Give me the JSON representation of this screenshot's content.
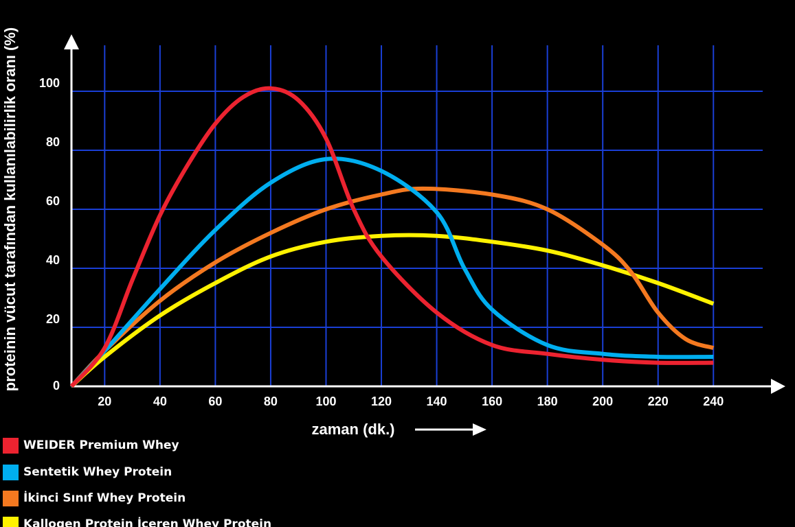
{
  "chart_data": {
    "type": "line",
    "title": "",
    "xlabel": "zaman (dk.)",
    "ylabel": "proteinin vücut tarafından kullanılabilirlik oranı (%)",
    "xlim": [
      8,
      240
    ],
    "ylim": [
      0,
      100
    ],
    "x_ticks": [
      20,
      40,
      60,
      80,
      100,
      120,
      140,
      160,
      180,
      200,
      220,
      240
    ],
    "y_ticks": [
      0,
      20,
      40,
      60,
      80,
      100
    ],
    "grid": true,
    "legend_position": "bottom-left",
    "background": "#000000",
    "series": [
      {
        "name": "WEIDER Premium Whey",
        "color": "#ec2330",
        "x": [
          8,
          20,
          30,
          40,
          50,
          60,
          70,
          80,
          90,
          100,
          110,
          120,
          140,
          160,
          180,
          200,
          220,
          240
        ],
        "y": [
          0,
          13,
          36,
          58,
          75,
          89,
          98,
          101,
          97,
          84,
          60,
          44,
          25,
          14,
          11,
          9,
          8,
          8
        ]
      },
      {
        "name": "Sentetik Whey Protein",
        "color": "#00aeef",
        "x": [
          8,
          20,
          40,
          60,
          80,
          100,
          120,
          140,
          150,
          160,
          180,
          200,
          220,
          240
        ],
        "y": [
          0,
          12,
          33,
          53,
          69,
          77,
          73,
          59,
          40,
          26,
          14,
          11,
          10,
          10
        ]
      },
      {
        "name": "İkinci Sınıf Whey Protein",
        "color": "#f47920",
        "x": [
          8,
          20,
          40,
          60,
          80,
          100,
          120,
          135,
          160,
          180,
          200,
          210,
          220,
          230,
          240
        ],
        "y": [
          0,
          12,
          29,
          42,
          52,
          60,
          65,
          67,
          65,
          60,
          48,
          39,
          25,
          16,
          13
        ]
      },
      {
        "name": "Kallogen Protein İçeren Whey Protein",
        "color": "#fff200",
        "x": [
          8,
          20,
          40,
          60,
          80,
          100,
          120,
          140,
          160,
          180,
          200,
          220,
          240
        ],
        "y": [
          0,
          10,
          24,
          35,
          44,
          49,
          51,
          51,
          49,
          46,
          41,
          35,
          28
        ]
      }
    ]
  }
}
